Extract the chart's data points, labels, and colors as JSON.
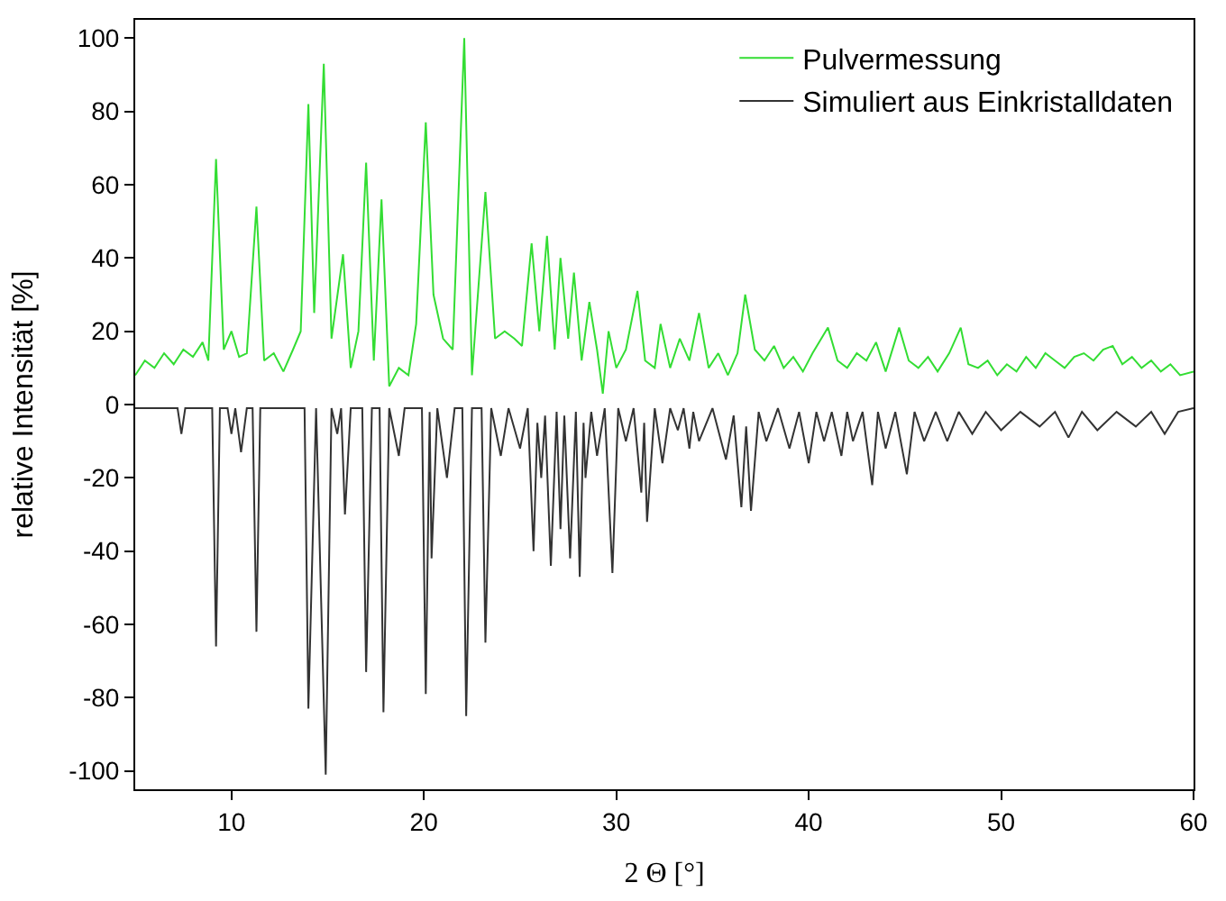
{
  "chart_data": {
    "type": "line",
    "xlabel": "2 Θ [°]",
    "ylabel": "relative Intensität [%]",
    "xlim": [
      5,
      60
    ],
    "xticks": [
      10,
      20,
      30,
      40,
      50,
      60
    ],
    "ylim": [
      -105,
      105
    ],
    "yticks": [
      -100,
      -80,
      -60,
      -40,
      -20,
      0,
      20,
      40,
      60,
      80,
      100
    ],
    "legend": "top right",
    "marker": "none",
    "line_style": "solid",
    "series": [
      {
        "name": "Pulvermessung",
        "color": "#33dd33",
        "x": [
          5,
          5.5,
          6,
          6.5,
          7,
          7.5,
          8,
          8.5,
          8.8,
          9.2,
          9.6,
          10,
          10.4,
          10.8,
          11.3,
          11.7,
          12.2,
          12.7,
          13.2,
          13.6,
          14.0,
          14.3,
          14.8,
          15.2,
          15.8,
          16.2,
          16.6,
          17.0,
          17.4,
          17.8,
          18.2,
          18.7,
          19.2,
          19.6,
          20.1,
          20.5,
          21.0,
          21.5,
          22.1,
          22.5,
          23.2,
          23.7,
          24.2,
          24.7,
          25.1,
          25.6,
          26.0,
          26.4,
          26.8,
          27.1,
          27.5,
          27.8,
          28.2,
          28.6,
          29.0,
          29.3,
          29.6,
          30.0,
          30.5,
          31.1,
          31.5,
          32.0,
          32.3,
          32.8,
          33.3,
          33.8,
          34.3,
          34.8,
          35.3,
          35.8,
          36.3,
          36.7,
          37.2,
          37.7,
          38.2,
          38.7,
          39.2,
          39.7,
          40.2,
          41.0,
          41.5,
          42.0,
          42.5,
          43.0,
          43.5,
          44.0,
          44.7,
          45.2,
          45.7,
          46.2,
          46.7,
          47.3,
          47.9,
          48.3,
          48.8,
          49.3,
          49.8,
          50.3,
          50.8,
          51.3,
          51.8,
          52.3,
          52.8,
          53.3,
          53.8,
          54.3,
          54.8,
          55.3,
          55.8,
          56.3,
          56.8,
          57.3,
          57.8,
          58.3,
          58.8,
          59.3,
          60
        ],
        "values": [
          8,
          12,
          10,
          14,
          11,
          15,
          13,
          17,
          12,
          67,
          15,
          20,
          13,
          14,
          54,
          12,
          14,
          9,
          15,
          20,
          82,
          25,
          93,
          18,
          41,
          10,
          20,
          66,
          12,
          56,
          5,
          10,
          8,
          22,
          77,
          30,
          18,
          15,
          100,
          8,
          58,
          18,
          20,
          18,
          16,
          44,
          20,
          46,
          15,
          40,
          18,
          36,
          12,
          28,
          15,
          3,
          20,
          10,
          15,
          31,
          12,
          10,
          22,
          10,
          18,
          12,
          25,
          10,
          14,
          8,
          14,
          30,
          15,
          12,
          16,
          10,
          13,
          9,
          14,
          21,
          12,
          10,
          14,
          12,
          17,
          9,
          21,
          12,
          10,
          13,
          9,
          14,
          21,
          11,
          10,
          12,
          8,
          11,
          9,
          13,
          10,
          14,
          12,
          10,
          13,
          14,
          12,
          15,
          16,
          11,
          13,
          10,
          12,
          9,
          11,
          8,
          9
        ]
      },
      {
        "name": "Simuliert aus Einkristalldaten",
        "color": "#333333",
        "x": [
          5,
          7.2,
          7.4,
          7.6,
          9.0,
          9.2,
          9.4,
          9.8,
          10.0,
          10.2,
          10.5,
          10.8,
          11.1,
          11.3,
          11.5,
          13.8,
          14.0,
          14.4,
          14.9,
          15.2,
          15.5,
          15.7,
          15.9,
          16.2,
          16.8,
          17.0,
          17.3,
          17.7,
          17.9,
          18.2,
          18.7,
          19.0,
          19.9,
          20.1,
          20.3,
          20.4,
          20.7,
          21.2,
          21.6,
          22.0,
          22.2,
          22.5,
          23.0,
          23.2,
          23.5,
          24.0,
          24.4,
          25.0,
          25.4,
          25.7,
          25.9,
          26.1,
          26.3,
          26.6,
          26.9,
          27.1,
          27.3,
          27.6,
          27.9,
          28.1,
          28.3,
          28.4,
          28.7,
          29.0,
          29.4,
          29.8,
          30.1,
          30.5,
          30.9,
          31.3,
          31.45,
          31.6,
          32.0,
          32.4,
          32.8,
          33.2,
          33.5,
          33.8,
          34.0,
          34.3,
          35.0,
          35.7,
          36.1,
          36.5,
          36.75,
          37.0,
          37.4,
          37.8,
          38.4,
          39.0,
          39.5,
          40.0,
          40.4,
          40.8,
          41.2,
          41.7,
          42.0,
          42.3,
          42.8,
          43.3,
          43.6,
          44.0,
          44.5,
          45.1,
          45.5,
          46.0,
          46.6,
          47.2,
          47.8,
          48.5,
          49.2,
          50.0,
          51.0,
          52.0,
          52.8,
          53.5,
          54.2,
          55.0,
          56.0,
          57.0,
          57.8,
          58.5,
          59.2,
          60
        ],
        "values": [
          -1,
          -1,
          -8,
          -1,
          -1,
          -66,
          -1,
          -1,
          -8,
          -1,
          -13,
          -1,
          -1,
          -62,
          -1,
          -1,
          -83,
          -1,
          -101,
          -1,
          -8,
          -1,
          -30,
          -1,
          -1,
          -73,
          -1,
          -1,
          -84,
          -1,
          -14,
          -1,
          -1,
          -79,
          -2,
          -42,
          -1,
          -20,
          -1,
          -1,
          -85,
          -1,
          -1,
          -65,
          -1,
          -14,
          -1,
          -12,
          -1,
          -40,
          -5,
          -20,
          -3,
          -44,
          -2,
          -34,
          -3,
          -42,
          -2,
          -47,
          -5,
          -20,
          -2,
          -14,
          -1,
          -46,
          -1,
          -10,
          -1,
          -24,
          -5,
          -32,
          -1,
          -16,
          -1,
          -7,
          -1,
          -12,
          -2,
          -10,
          -1,
          -15,
          -3,
          -28,
          -6,
          -29,
          -2,
          -10,
          -1,
          -12,
          -2,
          -16,
          -2,
          -10,
          -2,
          -14,
          -2,
          -10,
          -2,
          -22,
          -2,
          -12,
          -2,
          -19,
          -2,
          -10,
          -2,
          -10,
          -2,
          -8,
          -2,
          -7,
          -2,
          -6,
          -2,
          -9,
          -2,
          -7,
          -2,
          -6,
          -2,
          -8,
          -2,
          -1
        ]
      }
    ]
  }
}
